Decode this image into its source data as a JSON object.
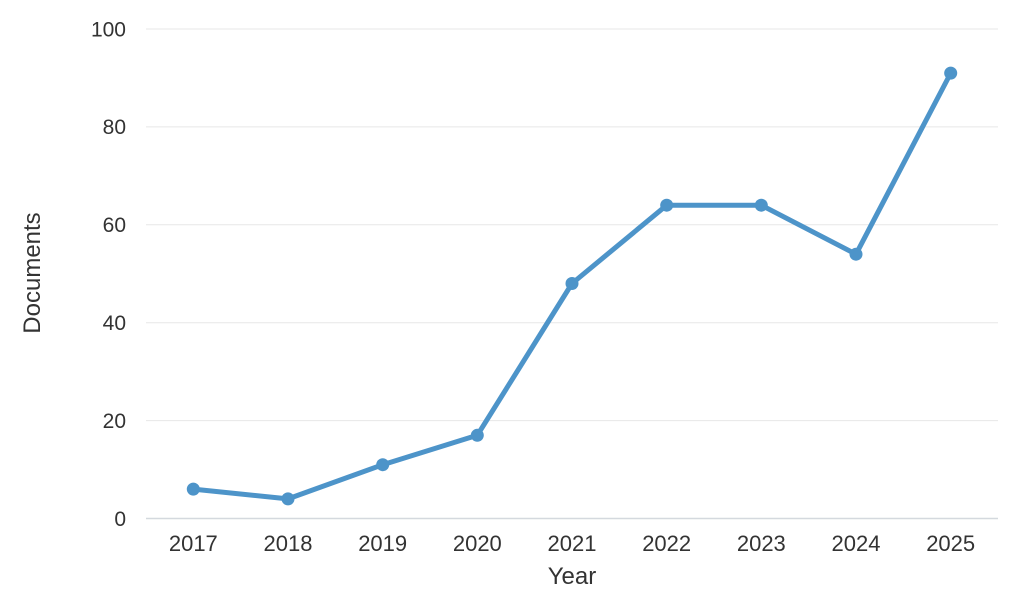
{
  "chart_data": {
    "type": "line",
    "title": "",
    "categories": [
      "2017",
      "2018",
      "2019",
      "2020",
      "2021",
      "2022",
      "2023",
      "2024",
      "2025"
    ],
    "series": [
      {
        "name": "Documents",
        "values": [
          6,
          4,
          11,
          17,
          48,
          64,
          64,
          54,
          91
        ]
      }
    ],
    "xlabel": "Year",
    "ylabel": "Documents",
    "ylim": [
      0,
      100
    ],
    "yticks": [
      0,
      20,
      40,
      60,
      80,
      100
    ],
    "grid": "horizontal",
    "legend_position": "none",
    "colors": {
      "line": "#4d94c9",
      "marker": "#4d94c9",
      "grid": "#e7e7e7",
      "axis_line": "#d4d9de",
      "text": "#333333",
      "background": "#ffffff"
    }
  }
}
